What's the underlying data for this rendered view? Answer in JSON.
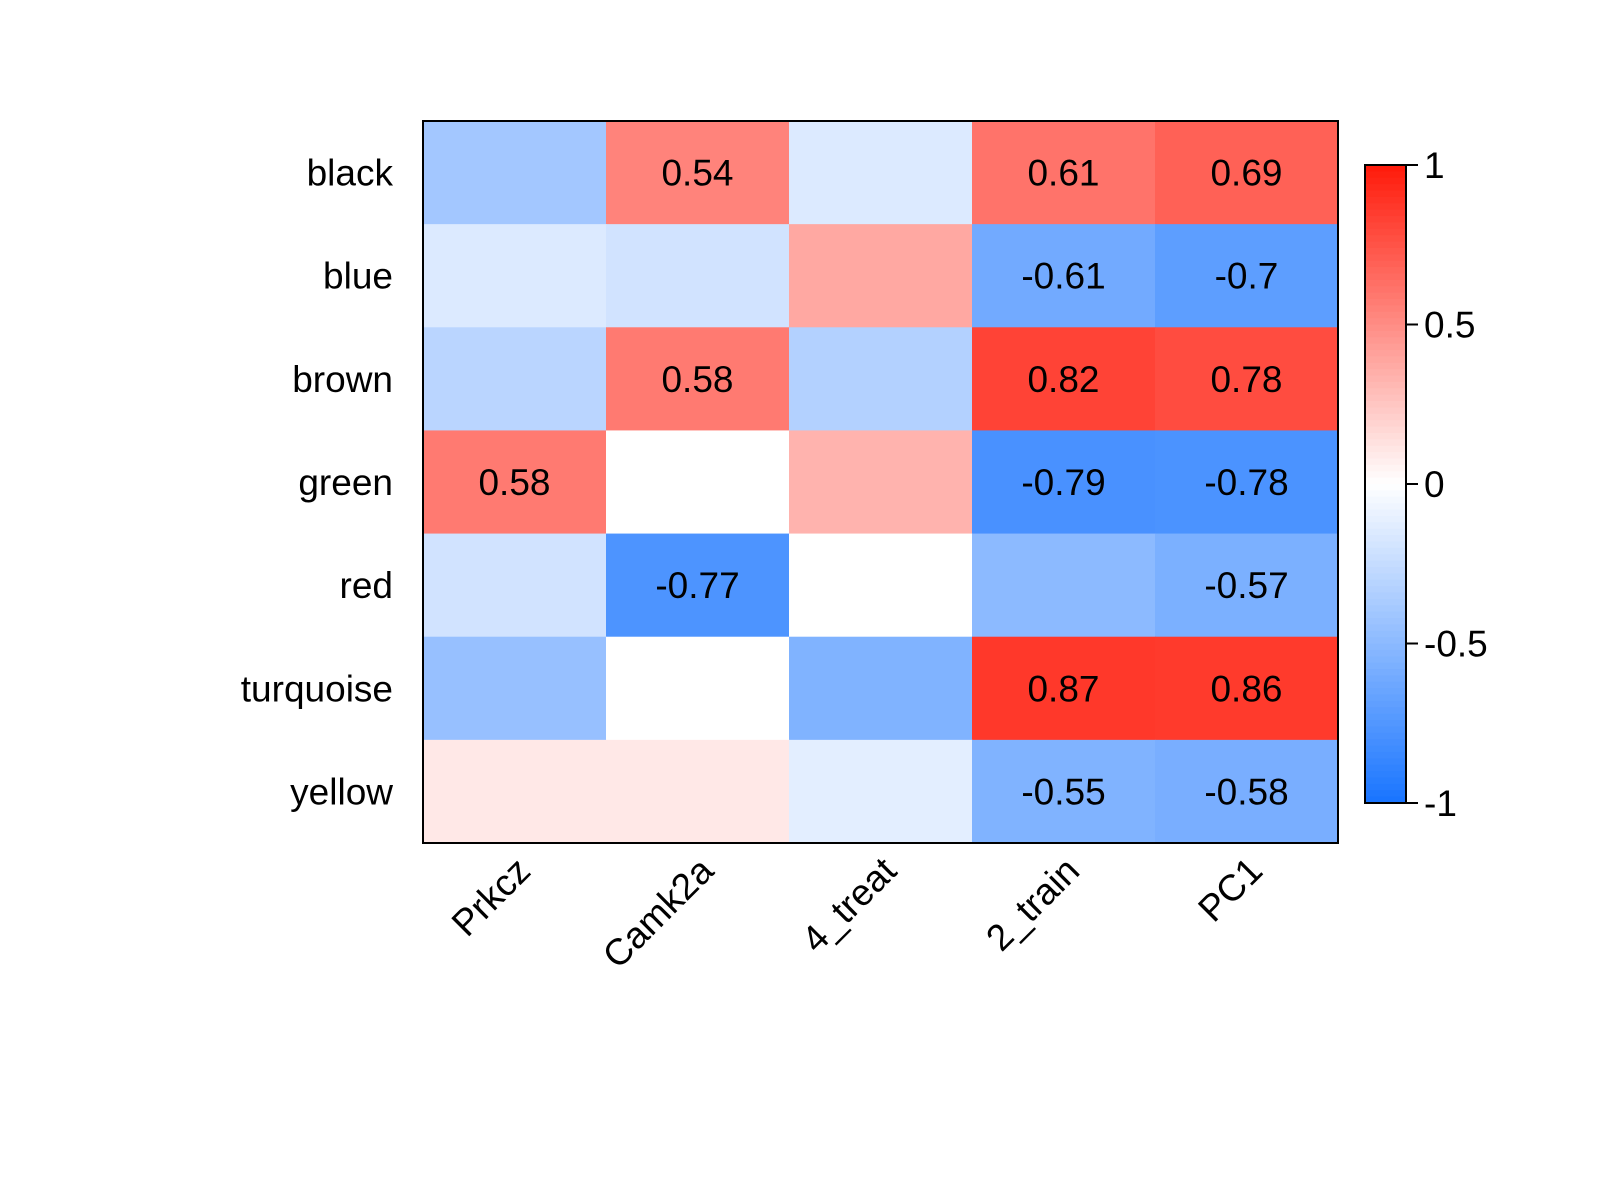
{
  "chart_data": {
    "type": "heatmap",
    "rows": [
      "black",
      "blue",
      "brown",
      "green",
      "red",
      "turquoise",
      "yellow"
    ],
    "columns": [
      "Prkcz",
      "Camk2a",
      "4_treat",
      "2_train",
      "PC1"
    ],
    "values": [
      [
        -0.4,
        0.54,
        -0.15,
        0.61,
        0.69
      ],
      [
        -0.15,
        -0.2,
        0.38,
        -0.61,
        -0.7
      ],
      [
        -0.3,
        0.58,
        -0.33,
        0.82,
        0.78
      ],
      [
        0.58,
        0.0,
        0.33,
        -0.79,
        -0.78
      ],
      [
        -0.2,
        -0.77,
        0.0,
        -0.5,
        -0.57
      ],
      [
        -0.45,
        0.0,
        -0.55,
        0.87,
        0.86
      ],
      [
        0.1,
        0.1,
        -0.12,
        -0.55,
        -0.58
      ]
    ],
    "cell_labels": [
      [
        "",
        "0.54",
        "",
        "0.61",
        "0.69"
      ],
      [
        "",
        "",
        "",
        "-0.61",
        "-0.7"
      ],
      [
        "",
        "0.58",
        "",
        "0.82",
        "0.78"
      ],
      [
        "0.58",
        "",
        "",
        "-0.79",
        "-0.78"
      ],
      [
        "",
        "-0.77",
        "",
        "",
        "-0.57"
      ],
      [
        "",
        "",
        "",
        "0.87",
        "0.86"
      ],
      [
        "",
        "",
        "",
        "-0.55",
        "-0.58"
      ]
    ],
    "value_range": [
      -1,
      1
    ],
    "legend": {
      "ticks": [
        1,
        0.5,
        0,
        -0.5,
        -1
      ],
      "tick_labels": [
        "1",
        "0.5",
        "0",
        "-0.5",
        "-1"
      ],
      "placement": "right"
    },
    "colors": {
      "low": "#1874ff",
      "mid": "#ffffff",
      "high": "#ff1a0a"
    },
    "title": "",
    "xlabel": "",
    "ylabel": ""
  }
}
